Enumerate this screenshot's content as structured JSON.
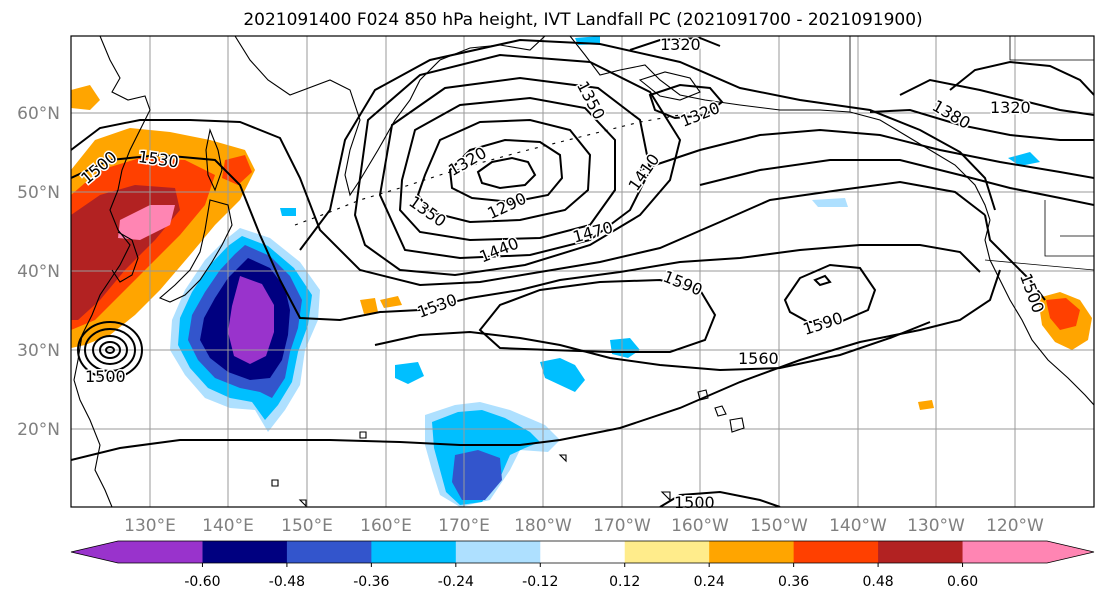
{
  "title": "2021091400 F024 850 hPa height, IVT Landfall PC (2021091700 - 2021091900)",
  "lat_labels": [
    "60°N",
    "50°N",
    "40°N",
    "30°N",
    "20°N"
  ],
  "lon_labels": [
    "130°E",
    "140°E",
    "150°E",
    "160°E",
    "170°E",
    "180°W",
    "170°W",
    "160°W",
    "150°W",
    "140°W",
    "130°W",
    "120°W"
  ],
  "colorbar": {
    "colors": [
      "#9933cc",
      "#000080",
      "#3355cc",
      "#00bfff",
      "#aee0ff",
      "#ffffff",
      "#ffec8b",
      "#ffa500",
      "#ff4000",
      "#b22222",
      "#ff85b3"
    ],
    "tick_labels": [
      "-0.60",
      "-0.48",
      "-0.36",
      "-0.24",
      "-0.12",
      "0.12",
      "0.24",
      "0.36",
      "0.48",
      "0.60"
    ]
  },
  "contour_labels": [
    "1320",
    "1350",
    "1320",
    "1380",
    "1320",
    "1410",
    "1320",
    "1290",
    "1350",
    "1440",
    "1470",
    "1530",
    "1500",
    "1590",
    "1590",
    "1530",
    "1500",
    "1560",
    "1500",
    "1500"
  ]
}
